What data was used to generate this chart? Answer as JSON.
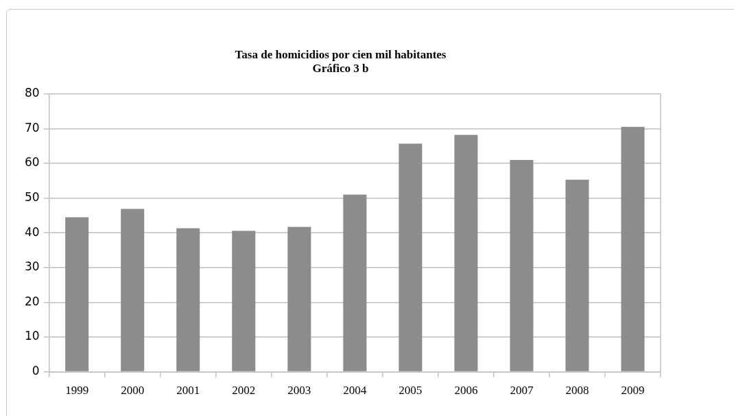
{
  "chart_data": {
    "type": "bar",
    "title": "Tasa de homicidios por cien mil habitantes\nGráfico 3 b",
    "categories": [
      "1999",
      "2000",
      "2001",
      "2002",
      "2003",
      "2004",
      "2005",
      "2006",
      "2007",
      "2008",
      "2009"
    ],
    "values": [
      44.5,
      46.9,
      41.3,
      40.6,
      41.7,
      51.0,
      65.7,
      68.2,
      61.0,
      55.3,
      70.5
    ],
    "color": "#8b8c8e",
    "ylim": [
      0,
      80
    ],
    "yticks": [
      0,
      10,
      20,
      30,
      40,
      50,
      60,
      70,
      80
    ],
    "grid": "y",
    "legend": false
  }
}
